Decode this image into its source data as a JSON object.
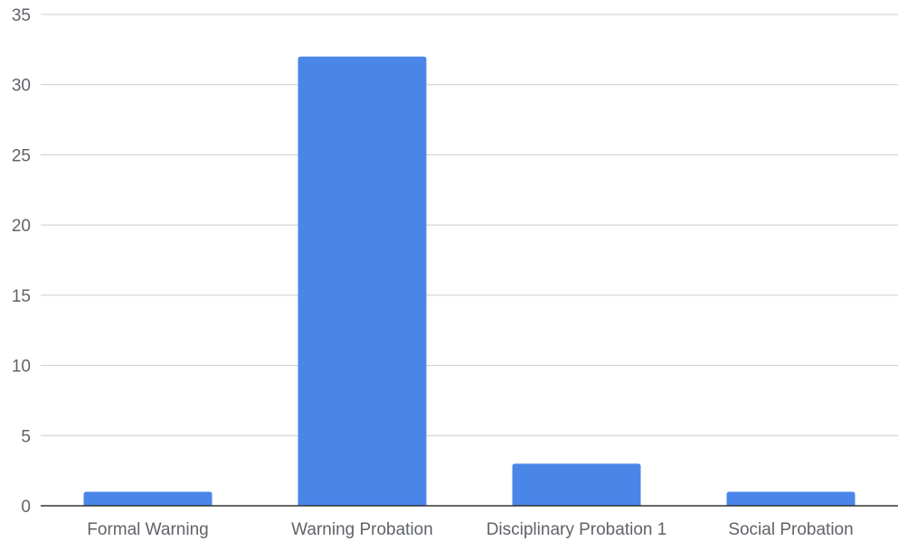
{
  "chart_data": {
    "type": "bar",
    "title": "",
    "xlabel": "",
    "ylabel": "",
    "categories": [
      "Formal Warning",
      "Warning Probation",
      "Disciplinary Probation 1",
      "Social Probation"
    ],
    "values": [
      1,
      32,
      3,
      1
    ],
    "ylim": [
      0,
      35
    ],
    "yticks": [
      0,
      5,
      10,
      15,
      20,
      25,
      30,
      35
    ],
    "grid": true,
    "legend": "none",
    "colors": {
      "bar": "#4a86e8",
      "grid": "#cccccc",
      "axis": "#333333",
      "text": "#5f6368"
    }
  }
}
